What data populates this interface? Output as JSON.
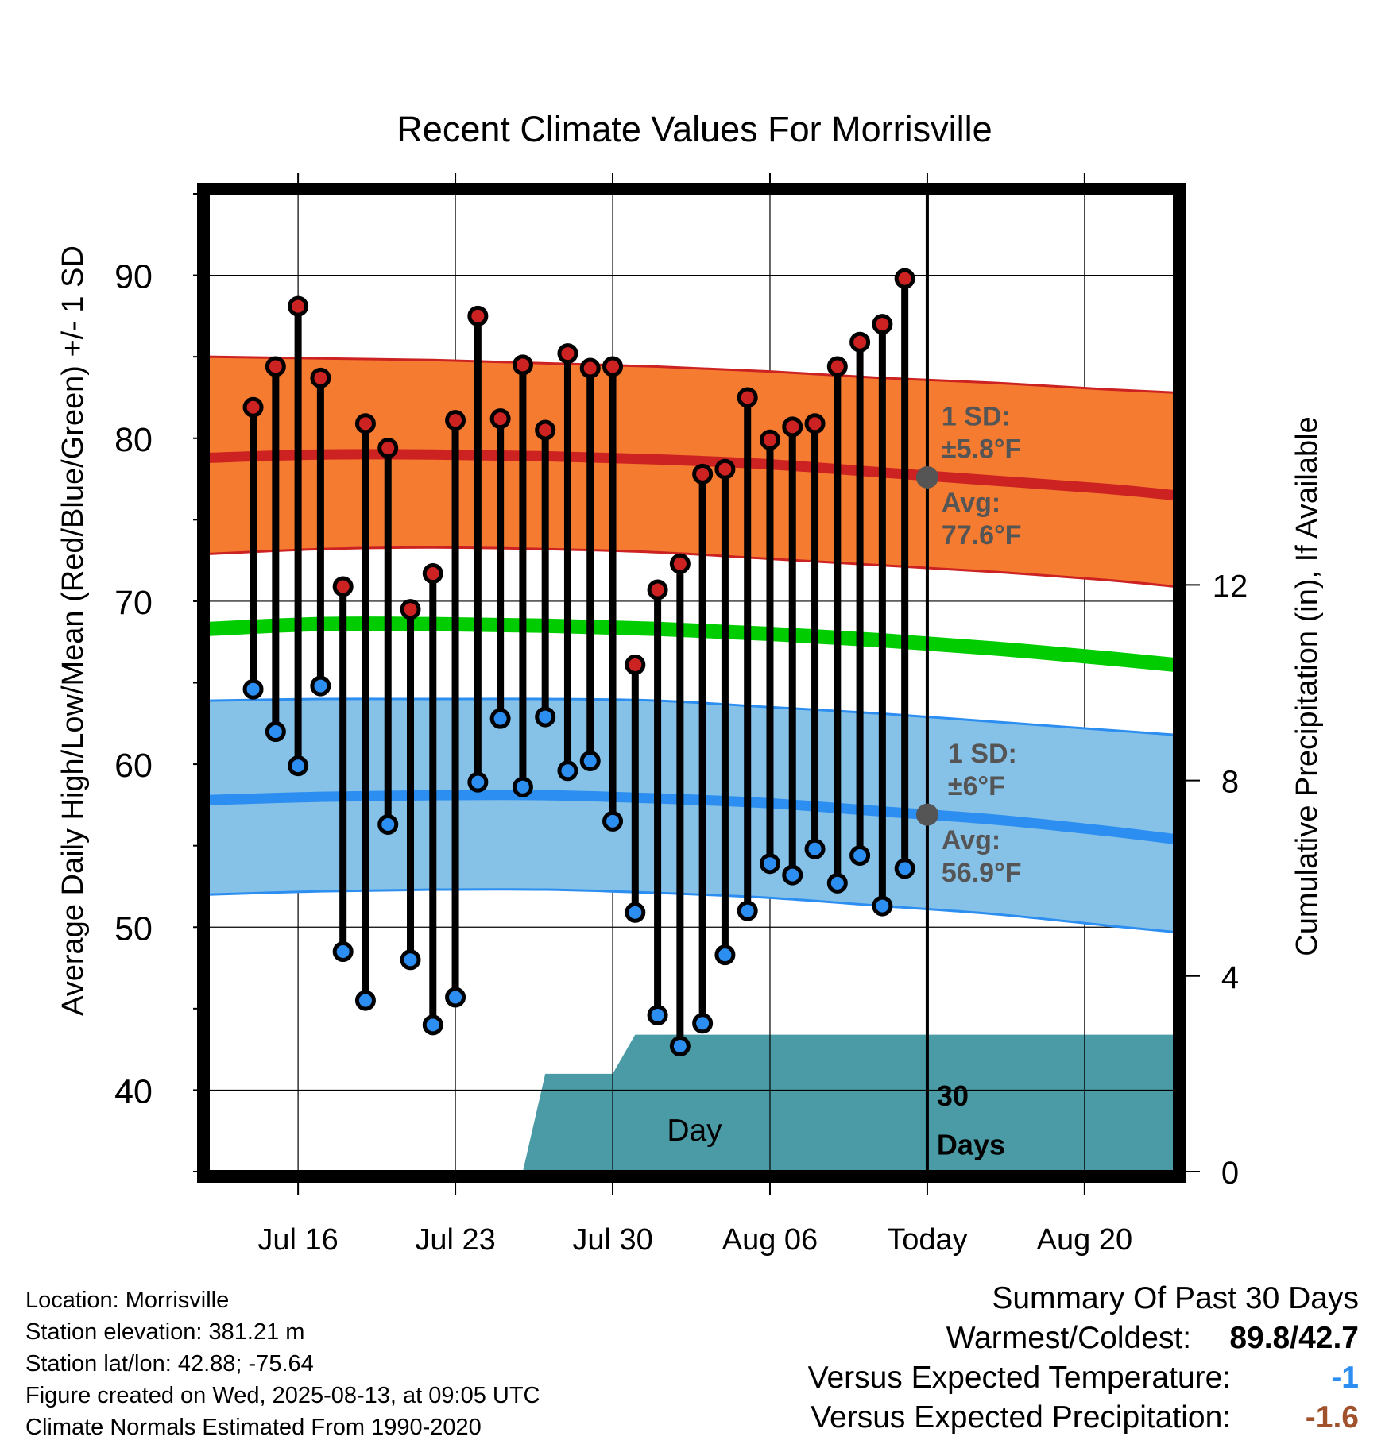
{
  "chart_data": {
    "type": "line",
    "title": "Recent Climate Values For Morrisville",
    "xlabel": "Day",
    "ylabel": "Average Daily High/Low/Mean (Red/Blue/Green) +/- 1 SD",
    "y2label": "Cumulative Precipitation (in), If Available",
    "xlim": [
      "2025-07-12",
      "2025-08-24"
    ],
    "ylim": [
      35,
      95
    ],
    "y2lim": [
      0,
      20
    ],
    "y_ticks": [
      40,
      50,
      60,
      70,
      80,
      90
    ],
    "y2_ticks": [
      0,
      4,
      8,
      12
    ],
    "x_ticks": [
      {
        "date": "2025-07-16",
        "label": "Jul 16"
      },
      {
        "date": "2025-07-23",
        "label": "Jul 23"
      },
      {
        "date": "2025-07-30",
        "label": "Jul 30"
      },
      {
        "date": "2025-08-06",
        "label": "Aug 06"
      },
      {
        "date": "2025-08-13",
        "label": "Today"
      },
      {
        "date": "2025-08-20",
        "label": "Aug 20"
      }
    ],
    "grid": true,
    "today": "2025-08-13",
    "daily": {
      "dates": [
        "2025-07-14",
        "2025-07-15",
        "2025-07-16",
        "2025-07-17",
        "2025-07-18",
        "2025-07-19",
        "2025-07-20",
        "2025-07-21",
        "2025-07-22",
        "2025-07-23",
        "2025-07-24",
        "2025-07-25",
        "2025-07-26",
        "2025-07-27",
        "2025-07-28",
        "2025-07-29",
        "2025-07-30",
        "2025-07-31",
        "2025-08-01",
        "2025-08-02",
        "2025-08-03",
        "2025-08-04",
        "2025-08-05",
        "2025-08-06",
        "2025-08-07",
        "2025-08-08",
        "2025-08-09",
        "2025-08-10",
        "2025-08-11",
        "2025-08-12"
      ],
      "highs": [
        81.9,
        84.4,
        88.1,
        83.7,
        70.9,
        80.9,
        79.4,
        69.5,
        71.7,
        81.1,
        87.5,
        81.2,
        84.5,
        80.5,
        85.2,
        84.3,
        84.4,
        66.1,
        70.7,
        72.3,
        77.8,
        78.1,
        82.5,
        79.9,
        80.7,
        80.9,
        84.4,
        85.9,
        87.0,
        89.8
      ],
      "lows": [
        64.6,
        62.0,
        59.9,
        64.8,
        48.5,
        45.5,
        56.3,
        48.0,
        44.0,
        45.7,
        58.9,
        62.8,
        58.6,
        62.9,
        59.6,
        60.2,
        56.5,
        50.9,
        44.6,
        42.7,
        44.1,
        48.3,
        51.0,
        53.9,
        53.2,
        54.8,
        52.7,
        54.4,
        51.3,
        53.6
      ],
      "high_color": "#cc2222",
      "low_color": "#2b8ef0"
    },
    "normals": {
      "dates": [
        "2025-07-12",
        "2025-07-17",
        "2025-07-22",
        "2025-07-27",
        "2025-08-01",
        "2025-08-06",
        "2025-08-11",
        "2025-08-16",
        "2025-08-21",
        "2025-08-24"
      ],
      "avg_high": [
        78.8,
        79.0,
        79.0,
        78.9,
        78.7,
        78.4,
        77.9,
        77.4,
        76.9,
        76.5
      ],
      "high_sd_upper": [
        85.0,
        84.9,
        84.8,
        84.6,
        84.4,
        84.1,
        83.7,
        83.4,
        83.0,
        82.8
      ],
      "high_sd_lower": [
        72.9,
        73.2,
        73.3,
        73.2,
        73.0,
        72.6,
        72.2,
        71.8,
        71.3,
        70.9
      ],
      "avg_mean": [
        68.3,
        68.6,
        68.6,
        68.5,
        68.3,
        68.0,
        67.6,
        67.1,
        66.5,
        66.1
      ],
      "avg_low": [
        57.8,
        58.0,
        58.1,
        58.1,
        57.9,
        57.6,
        57.1,
        56.6,
        55.9,
        55.4
      ],
      "low_sd_upper": [
        63.9,
        64.0,
        64.0,
        64.0,
        63.9,
        63.5,
        63.1,
        62.6,
        62.1,
        61.8
      ],
      "low_sd_lower": [
        52.0,
        52.2,
        52.3,
        52.3,
        52.1,
        51.8,
        51.3,
        50.8,
        50.1,
        49.7
      ],
      "high_band_color": "#f47b30",
      "low_band_color": "#86c1e8",
      "mean_color": "#00cc00"
    },
    "annotations": {
      "high_sd_line1": "1 SD:",
      "high_sd_line2": "±5.8°F",
      "high_avg_line1": "Avg:",
      "high_avg_line2": "77.6°F",
      "high_avg_today": 77.6,
      "low_sd_line1": "1 SD:",
      "low_sd_line2": "±6°F",
      "low_avg_line1": "Avg:",
      "low_avg_line2": "56.9°F",
      "low_avg_today": 56.9,
      "precip_line1": "30",
      "precip_line2": "Days"
    },
    "precipitation": {
      "dates": [
        "2025-07-26",
        "2025-07-27",
        "2025-07-30",
        "2025-07-31",
        "2025-08-13",
        "2025-08-24"
      ],
      "cumulative": [
        0.0,
        2.0,
        2.0,
        2.8,
        2.8,
        2.8
      ],
      "color": "#4a9ba5"
    }
  },
  "info": {
    "location": "Location: Morrisville",
    "elevation": "Station elevation: 381.21 m",
    "latlon": "Station lat/lon: 42.88; -75.64",
    "created": "Figure created on Wed, 2025-08-13, at 09:05 UTC",
    "normals": "Climate Normals Estimated From 1990-2020"
  },
  "summary": {
    "title": "Summary Of Past 30 Days",
    "warm_label": "Warmest/Coldest:",
    "warm_value": "89.8/42.7",
    "temp_label": "Versus Expected Temperature:",
    "temp_value": "-1",
    "temp_color": "#2b8ef0",
    "precip_label": "Versus Expected Precipitation:",
    "precip_value": "-1.6",
    "precip_color": "#a0522d"
  }
}
